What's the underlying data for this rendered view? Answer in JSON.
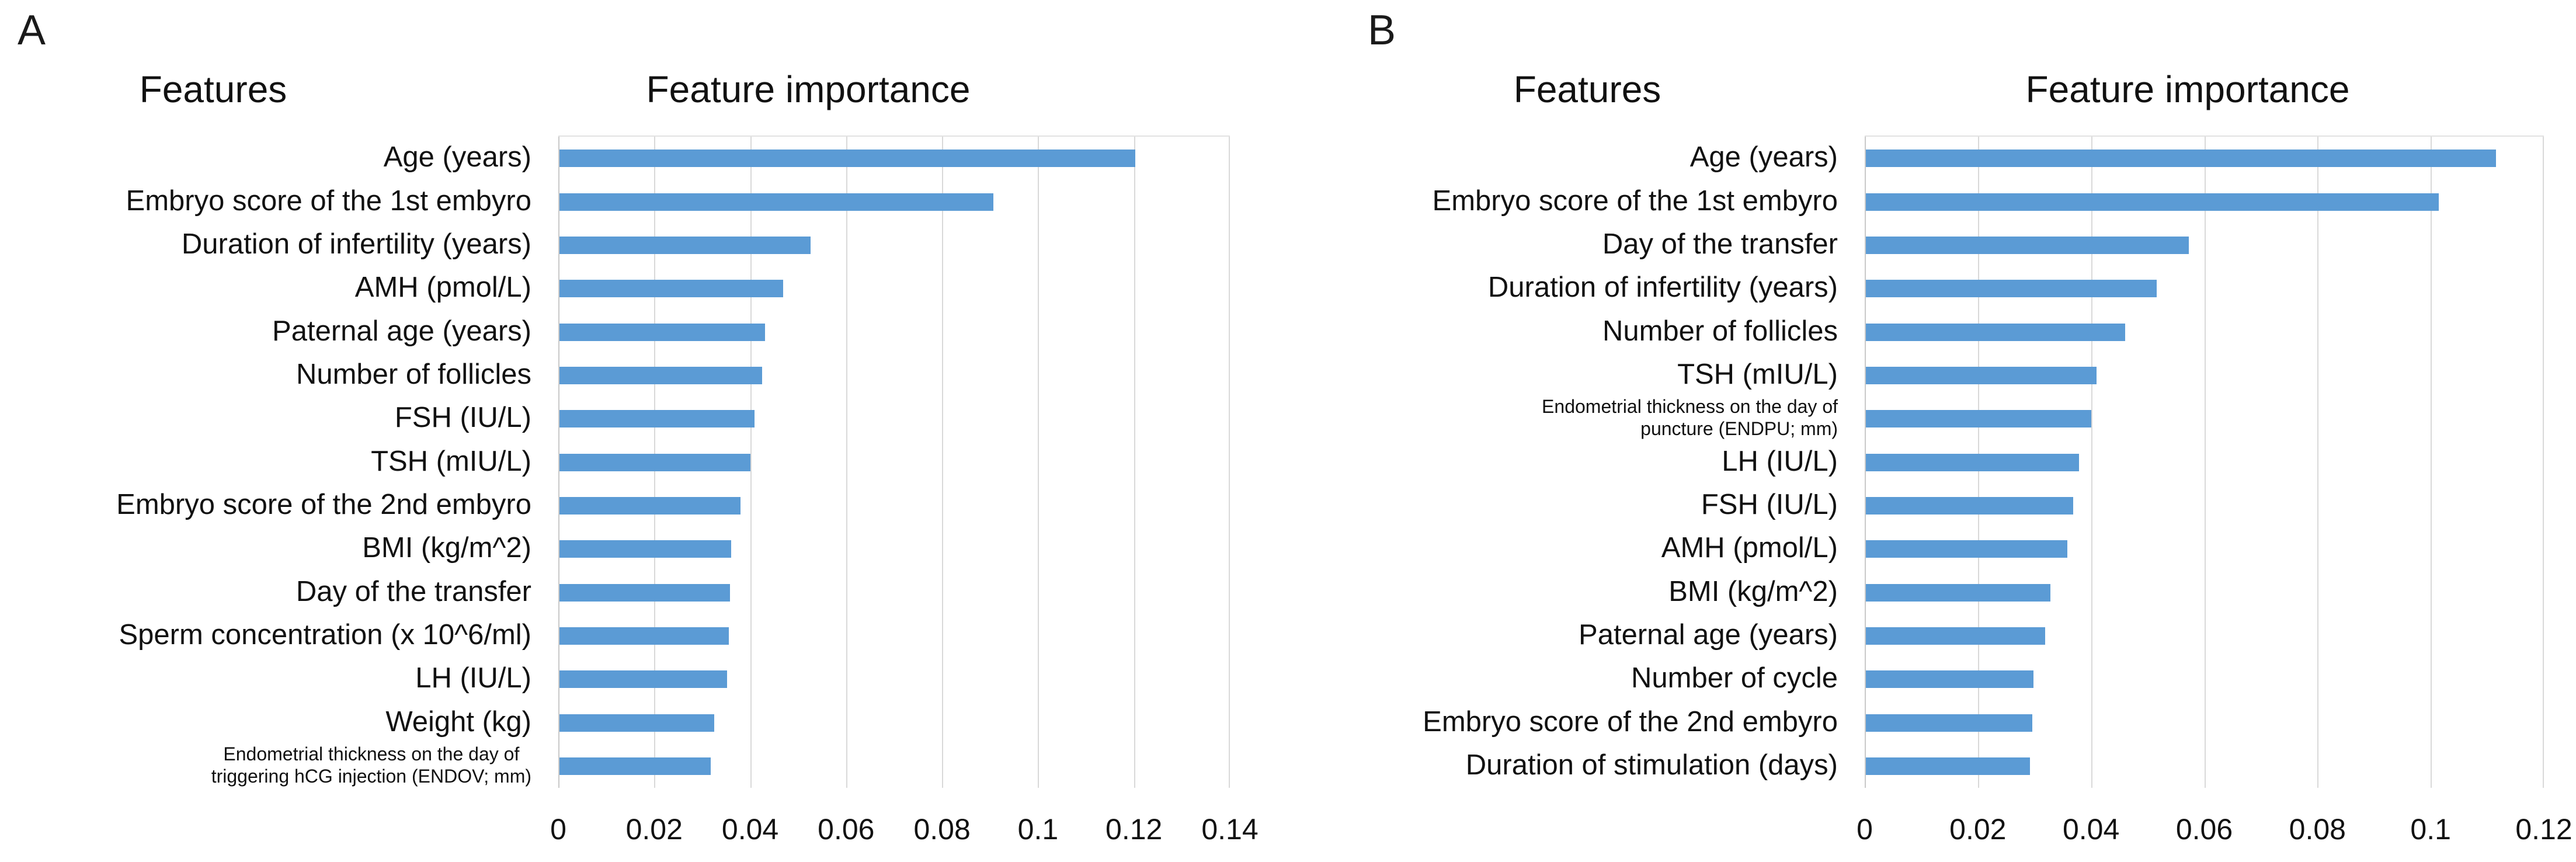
{
  "colors": {
    "bar": "#5B9BD5",
    "gridline": "#D9D9D9",
    "category_axis_line": "#C9C9C9",
    "text": "#111111",
    "background": "#FFFFFF"
  },
  "panels": [
    {
      "letter": "A",
      "features_title": "Features",
      "importance_title": "Feature importance",
      "bars": [
        {
          "label": "Age (years)",
          "value": 0.12
        },
        {
          "label": "Embryo score of the 1st embyro",
          "value": 0.0905
        },
        {
          "label": "Duration of infertility (years)",
          "value": 0.0523
        },
        {
          "label": "AMH (pmol/L)",
          "value": 0.0466
        },
        {
          "label": "Paternal age (years)",
          "value": 0.0428
        },
        {
          "label": "Number of follicles",
          "value": 0.0423
        },
        {
          "label": "FSH (IU/L)",
          "value": 0.0406
        },
        {
          "label": "TSH (mIU/L)",
          "value": 0.0398
        },
        {
          "label": "Embryo score of the 2nd embyro",
          "value": 0.0377
        },
        {
          "label": "BMI (kg/m^2)",
          "value": 0.0358
        },
        {
          "label": "Day of the transfer",
          "value": 0.0356
        },
        {
          "label": "Sperm concentration (x 10^6/ml)",
          "value": 0.0353
        },
        {
          "label": "LH (IU/L)",
          "value": 0.0349
        },
        {
          "label": "Weight (kg)",
          "value": 0.0323
        },
        {
          "label_lines": [
            "Endometrial thickness on the day of",
            "triggering hCG injection (ENDOV; mm)"
          ],
          "small": true,
          "value": 0.0315
        }
      ],
      "axis": {
        "min": 0,
        "max": 0.14,
        "tick_labels": [
          "0",
          "0.02",
          "0.04",
          "0.06",
          "0.08",
          "0.1",
          "0.12",
          "0.14"
        ]
      }
    },
    {
      "letter": "B",
      "features_title": "Features",
      "importance_title": "Feature importance",
      "bars": [
        {
          "label": "Age (years)",
          "value": 0.1113
        },
        {
          "label": "Embryo score of the 1st embyro",
          "value": 0.1012
        },
        {
          "label": "Day of the transfer",
          "value": 0.0571
        },
        {
          "label": "Duration of infertility (years)",
          "value": 0.0514
        },
        {
          "label": "Number of follicles",
          "value": 0.0458
        },
        {
          "label": "TSH (mIU/L)",
          "value": 0.0408
        },
        {
          "label_lines": [
            "Endometrial thickness on the day of",
            "puncture (ENDPU; mm)"
          ],
          "small": true,
          "value": 0.0398
        },
        {
          "label": "LH (IU/L)",
          "value": 0.0377
        },
        {
          "label": "FSH (IU/L)",
          "value": 0.0366
        },
        {
          "label": "AMH (pmol/L)",
          "value": 0.0356
        },
        {
          "label": "BMI (kg/m^2)",
          "value": 0.0326
        },
        {
          "label": "Paternal age (years)",
          "value": 0.0317
        },
        {
          "label": "Number of cycle",
          "value": 0.0296
        },
        {
          "label": "Embryo score of the 2nd embyro",
          "value": 0.0294
        },
        {
          "label": "Duration of stimulation (days)",
          "value": 0.029
        }
      ],
      "axis": {
        "min": 0,
        "max": 0.12,
        "tick_labels": [
          "0",
          "0.02",
          "0.04",
          "0.06",
          "0.08",
          "0.1",
          "0.12"
        ]
      }
    }
  ],
  "chart_data": [
    {
      "type": "bar",
      "orientation": "horizontal",
      "panel": "A",
      "title": "Feature importance",
      "categories_title": "Features",
      "categories": [
        "Age (years)",
        "Embryo score of the 1st embyro",
        "Duration of infertility (years)",
        "AMH (pmol/L)",
        "Paternal age (years)",
        "Number of follicles",
        "FSH (IU/L)",
        "TSH (mIU/L)",
        "Embryo score of the 2nd embyro",
        "BMI (kg/m^2)",
        "Day of the transfer",
        "Sperm concentration (x 10^6/ml)",
        "LH (IU/L)",
        "Weight (kg)",
        "Endometrial thickness on the day of triggering hCG injection (ENDOV; mm)"
      ],
      "values": [
        0.12,
        0.0905,
        0.0523,
        0.0466,
        0.0428,
        0.0423,
        0.0406,
        0.0398,
        0.0377,
        0.0358,
        0.0356,
        0.0353,
        0.0349,
        0.0323,
        0.0315
      ],
      "xlim": [
        0,
        0.14
      ],
      "xticks": [
        "0",
        "0.02",
        "0.04",
        "0.06",
        "0.08",
        "0.1",
        "0.12",
        "0.14"
      ],
      "grid": "vertical",
      "legend": "none",
      "bar_color": "#5B9BD5"
    },
    {
      "type": "bar",
      "orientation": "horizontal",
      "panel": "B",
      "title": "Feature importance",
      "categories_title": "Features",
      "categories": [
        "Age (years)",
        "Embryo score of the 1st embyro",
        "Day of the transfer",
        "Duration of infertility (years)",
        "Number of follicles",
        "TSH (mIU/L)",
        "Endometrial thickness on the day of puncture (ENDPU; mm)",
        "LH (IU/L)",
        "FSH (IU/L)",
        "AMH (pmol/L)",
        "BMI (kg/m^2)",
        "Paternal age (years)",
        "Number of cycle",
        "Embryo score of the 2nd embyro",
        "Duration of stimulation (days)"
      ],
      "values": [
        0.1113,
        0.1012,
        0.0571,
        0.0514,
        0.0458,
        0.0408,
        0.0398,
        0.0377,
        0.0366,
        0.0356,
        0.0326,
        0.0317,
        0.0296,
        0.0294,
        0.029
      ],
      "xlim": [
        0,
        0.12
      ],
      "xticks": [
        "0",
        "0.02",
        "0.04",
        "0.06",
        "0.08",
        "0.1",
        "0.12"
      ],
      "grid": "vertical",
      "legend": "none",
      "bar_color": "#5B9BD5"
    }
  ]
}
